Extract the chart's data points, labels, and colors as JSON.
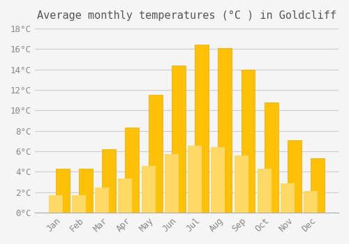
{
  "title": "Average monthly temperatures (°C ) in Goldcliff",
  "months": [
    "Jan",
    "Feb",
    "Mar",
    "Apr",
    "May",
    "Jun",
    "Jul",
    "Aug",
    "Sep",
    "Oct",
    "Nov",
    "Dec"
  ],
  "values": [
    4.3,
    4.3,
    6.2,
    8.3,
    11.5,
    14.4,
    16.4,
    16.1,
    14.0,
    10.8,
    7.1,
    5.3
  ],
  "bar_color_top": "#FFC107",
  "bar_color_bottom": "#FFD966",
  "background_color": "#F5F5F5",
  "ylim": [
    0,
    18
  ],
  "yticks": [
    0,
    2,
    4,
    6,
    8,
    10,
    12,
    14,
    16,
    18
  ],
  "ytick_labels": [
    "0°C",
    "2°C",
    "4°C",
    "6°C",
    "8°C",
    "10°C",
    "12°C",
    "14°C",
    "16°C",
    "18°C"
  ],
  "title_fontsize": 11,
  "tick_fontsize": 9,
  "grid_color": "#CCCCCC",
  "bar_edge_color": "#E8A800",
  "bar_width": 0.6
}
